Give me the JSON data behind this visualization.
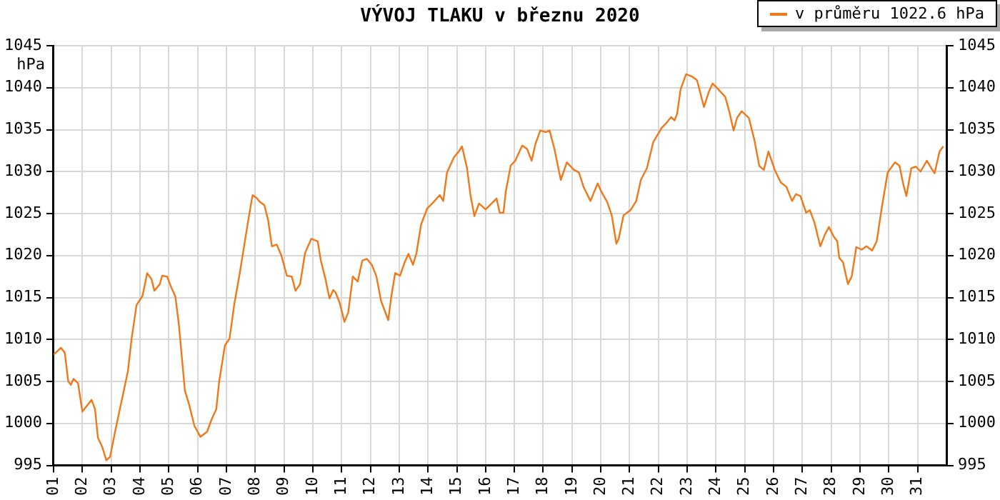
{
  "chart_data": {
    "type": "line",
    "title": "VÝVOJ TLAKU v březnu 2020",
    "ylabel": "hPa",
    "legend": "top right",
    "grid": true,
    "marker": "none",
    "line_style": "solid",
    "xlim": [
      1,
      32
    ],
    "xticks": [
      {
        "value": 1,
        "label": "01"
      },
      {
        "value": 2,
        "label": "02"
      },
      {
        "value": 3,
        "label": "03"
      },
      {
        "value": 4,
        "label": "04"
      },
      {
        "value": 5,
        "label": "05"
      },
      {
        "value": 6,
        "label": "06"
      },
      {
        "value": 7,
        "label": "07"
      },
      {
        "value": 8,
        "label": "08"
      },
      {
        "value": 9,
        "label": "09"
      },
      {
        "value": 10,
        "label": "10"
      },
      {
        "value": 11,
        "label": "11"
      },
      {
        "value": 12,
        "label": "12"
      },
      {
        "value": 13,
        "label": "13"
      },
      {
        "value": 14,
        "label": "14"
      },
      {
        "value": 15,
        "label": "15"
      },
      {
        "value": 16,
        "label": "16"
      },
      {
        "value": 17,
        "label": "17"
      },
      {
        "value": 18,
        "label": "18"
      },
      {
        "value": 19,
        "label": "19"
      },
      {
        "value": 20,
        "label": "20"
      },
      {
        "value": 21,
        "label": "21"
      },
      {
        "value": 22,
        "label": "22"
      },
      {
        "value": 23,
        "label": "23"
      },
      {
        "value": 24,
        "label": "24"
      },
      {
        "value": 25,
        "label": "25"
      },
      {
        "value": 26,
        "label": "26"
      },
      {
        "value": 27,
        "label": "27"
      },
      {
        "value": 28,
        "label": "28"
      },
      {
        "value": 29,
        "label": "29"
      },
      {
        "value": 30,
        "label": "30"
      },
      {
        "value": 31,
        "label": "31"
      }
    ],
    "ylim": [
      995,
      1045
    ],
    "yticks": [
      995,
      1000,
      1005,
      1010,
      1015,
      1020,
      1025,
      1030,
      1035,
      1040,
      1045
    ],
    "y2lim": [
      995,
      1045
    ],
    "y2ticks": [
      995,
      1000,
      1005,
      1010,
      1015,
      1020,
      1025,
      1030,
      1035,
      1040,
      1045
    ],
    "x": [
      1.0,
      1.26,
      1.39,
      1.51,
      1.6,
      1.69,
      1.85,
      2.0,
      2.16,
      2.32,
      2.44,
      2.54,
      2.7,
      2.83,
      2.96,
      3.16,
      3.39,
      3.58,
      3.71,
      3.88,
      4.09,
      4.25,
      4.4,
      4.5,
      4.69,
      4.77,
      4.94,
      5.1,
      5.23,
      5.35,
      5.56,
      5.71,
      5.89,
      6.1,
      6.33,
      6.49,
      6.65,
      6.75,
      6.95,
      7.11,
      7.27,
      7.47,
      7.6,
      7.76,
      7.91,
      8.04,
      8.16,
      8.32,
      8.45,
      8.58,
      8.75,
      8.91,
      9.1,
      9.27,
      9.4,
      9.56,
      9.73,
      9.86,
      9.95,
      10.17,
      10.28,
      10.44,
      10.58,
      10.71,
      10.79,
      10.93,
      11.1,
      11.23,
      11.39,
      11.56,
      11.72,
      11.88,
      12.05,
      12.21,
      12.37,
      12.62,
      12.73,
      12.86,
      13.03,
      13.19,
      13.32,
      13.48,
      13.6,
      13.76,
      13.97,
      14.2,
      14.41,
      14.53,
      14.66,
      14.9,
      15.07,
      15.18,
      15.35,
      15.48,
      15.61,
      15.77,
      16.0,
      16.21,
      16.38,
      16.49,
      16.62,
      16.7,
      16.87,
      17.03,
      17.27,
      17.44,
      17.6,
      17.73,
      17.9,
      18.09,
      18.22,
      18.39,
      18.61,
      18.82,
      19.07,
      19.24,
      19.4,
      19.64,
      19.89,
      20.02,
      20.22,
      20.38,
      20.54,
      20.62,
      20.79,
      21.03,
      21.23,
      21.39,
      21.6,
      21.82,
      22.11,
      22.28,
      22.44,
      22.56,
      22.65,
      22.77,
      22.96,
      23.18,
      23.34,
      23.58,
      23.75,
      23.88,
      24.08,
      24.32,
      24.48,
      24.61,
      24.73,
      24.89,
      25.14,
      25.33,
      25.5,
      25.66,
      25.82,
      26.04,
      26.25,
      26.44,
      26.64,
      26.77,
      26.93,
      27.13,
      27.26,
      27.42,
      27.62,
      27.78,
      27.92,
      28.08,
      28.21,
      28.28,
      28.41,
      28.58,
      28.71,
      28.87,
      29.06,
      29.22,
      29.42,
      29.58,
      29.75,
      29.96,
      30.21,
      30.37,
      30.5,
      30.61,
      30.78,
      30.94,
      31.1,
      31.32,
      31.51,
      31.59,
      31.76,
      31.89
    ],
    "series": [
      {
        "name": "v průměru 1022.6 hPa",
        "color": "#f07818",
        "values": [
          1008.2,
          1009.0,
          1008.4,
          1005.0,
          1004.6,
          1005.3,
          1004.8,
          1001.4,
          1002.1,
          1002.8,
          1001.7,
          998.3,
          997.1,
          995.6,
          996.0,
          999.4,
          1003.1,
          1006.2,
          1010.1,
          1014.1,
          1015.2,
          1017.9,
          1017.2,
          1015.8,
          1016.6,
          1017.6,
          1017.5,
          1016.1,
          1015.1,
          1011.8,
          1003.9,
          1002.2,
          999.7,
          998.4,
          999.0,
          1000.5,
          1001.7,
          1005.0,
          1009.3,
          1010.1,
          1014.1,
          1018.0,
          1020.8,
          1024.2,
          1027.2,
          1026.9,
          1026.4,
          1026.0,
          1024.2,
          1021.1,
          1021.3,
          1020.0,
          1017.6,
          1017.5,
          1015.8,
          1016.6,
          1020.3,
          1021.3,
          1022.0,
          1021.7,
          1019.4,
          1017.2,
          1014.9,
          1015.9,
          1015.6,
          1014.4,
          1012.1,
          1013.2,
          1017.5,
          1016.9,
          1019.4,
          1019.6,
          1018.9,
          1017.5,
          1014.6,
          1012.3,
          1015.2,
          1017.9,
          1017.6,
          1019.2,
          1020.2,
          1018.9,
          1020.3,
          1023.7,
          1025.6,
          1026.4,
          1027.2,
          1026.5,
          1029.9,
          1031.7,
          1032.4,
          1033.0,
          1030.5,
          1027.1,
          1024.7,
          1026.2,
          1025.5,
          1026.2,
          1026.8,
          1025.1,
          1025.1,
          1027.6,
          1030.7,
          1031.3,
          1033.1,
          1032.7,
          1031.3,
          1033.3,
          1034.9,
          1034.7,
          1034.9,
          1032.7,
          1029.0,
          1031.1,
          1030.2,
          1029.9,
          1028.2,
          1026.5,
          1028.6,
          1027.6,
          1026.4,
          1024.8,
          1021.4,
          1022.0,
          1024.8,
          1025.4,
          1026.5,
          1029.0,
          1030.4,
          1033.5,
          1035.2,
          1035.8,
          1036.5,
          1036.1,
          1036.9,
          1039.8,
          1041.6,
          1041.3,
          1040.9,
          1037.7,
          1039.5,
          1040.5,
          1039.8,
          1038.9,
          1036.9,
          1034.9,
          1036.4,
          1037.2,
          1036.4,
          1033.8,
          1030.7,
          1030.2,
          1032.4,
          1030.2,
          1028.7,
          1028.2,
          1026.5,
          1027.3,
          1027.1,
          1025.1,
          1025.4,
          1023.9,
          1021.1,
          1022.5,
          1023.4,
          1022.3,
          1021.7,
          1019.7,
          1019.2,
          1016.6,
          1017.5,
          1021.0,
          1020.7,
          1021.1,
          1020.6,
          1021.7,
          1025.6,
          1029.9,
          1031.1,
          1030.7,
          1028.5,
          1027.1,
          1030.4,
          1030.6,
          1030.0,
          1031.3,
          1030.2,
          1029.8,
          1032.4,
          1033.0
        ]
      }
    ]
  }
}
